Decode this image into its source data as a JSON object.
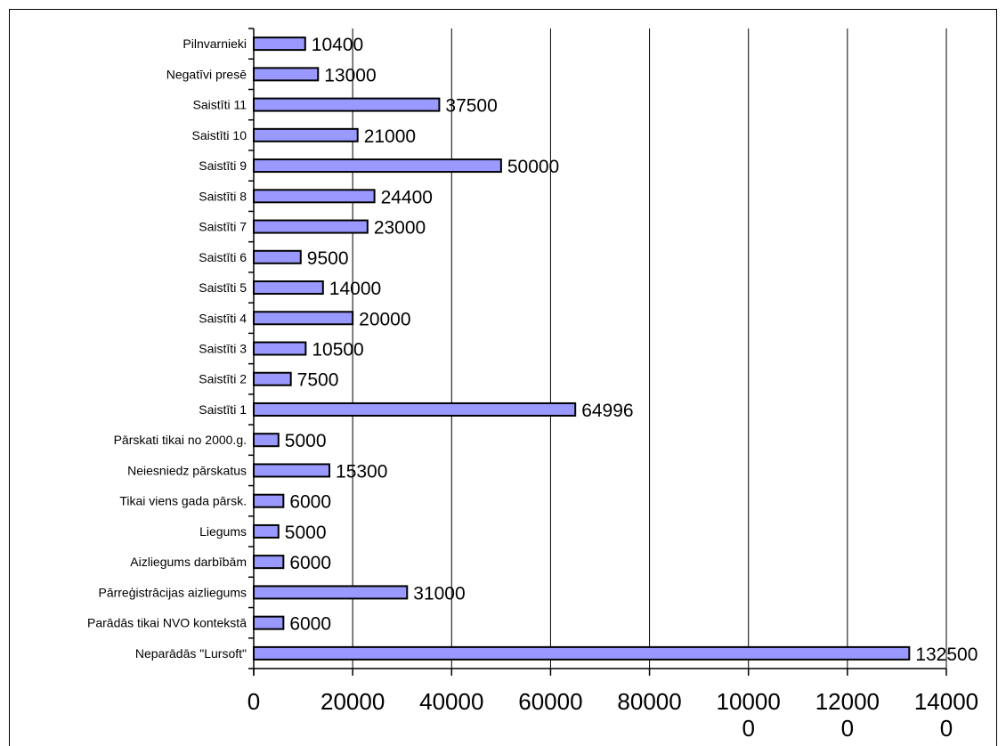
{
  "chart_data": {
    "type": "bar",
    "orientation": "horizontal",
    "categories": [
      "Pilnvarnieki",
      "Negatīvi presē",
      "Saistīti 11",
      "Saistīti 10",
      "Saistīti 9",
      "Saistīti 8",
      "Saistīti 7",
      "Saistīti 6",
      "Saistīti 5",
      "Saistīti 4",
      "Saistīti 3",
      "Saistīti 2",
      "Saistīti 1",
      "Pārskati tikai no 2000.g.",
      "Neiesniedz pārskatus",
      "Tikai viens gada pārsk.",
      "Liegums",
      "Aizliegums darbībām",
      "Pārreģistrācijas aizliegums",
      "Parādās tikai NVO kontekstā",
      "Neparādās \"Lursoft\""
    ],
    "values": [
      10400,
      13000,
      37500,
      21000,
      50000,
      24400,
      23000,
      9500,
      14000,
      20000,
      10500,
      7500,
      64996,
      5000,
      15300,
      6000,
      5000,
      6000,
      31000,
      6000,
      132500
    ],
    "data_labels": [
      "10400",
      "13000",
      "37500",
      "21000",
      "50000",
      "24400",
      "23000",
      "9500",
      "14000",
      "20000",
      "10500",
      "7500",
      "64996",
      "5000",
      "15300",
      "6000",
      "5000",
      "6000",
      "31000",
      "6000",
      "132500"
    ],
    "x_ticks": [
      0,
      20000,
      40000,
      60000,
      80000,
      100000,
      120000,
      140000
    ],
    "x_tick_labels": [
      [
        "0"
      ],
      [
        "20000"
      ],
      [
        "40000"
      ],
      [
        "60000"
      ],
      [
        "80000"
      ],
      [
        "10000",
        "0"
      ],
      [
        "12000",
        "0"
      ],
      [
        "14000",
        "0"
      ]
    ],
    "xlim": [
      0,
      140000
    ],
    "grid": true,
    "legend": false,
    "title": "",
    "xlabel": "",
    "ylabel": "",
    "colors": {
      "bar_fill": "#9999ff",
      "bar_stroke": "#000000",
      "grid": "#000000"
    }
  }
}
